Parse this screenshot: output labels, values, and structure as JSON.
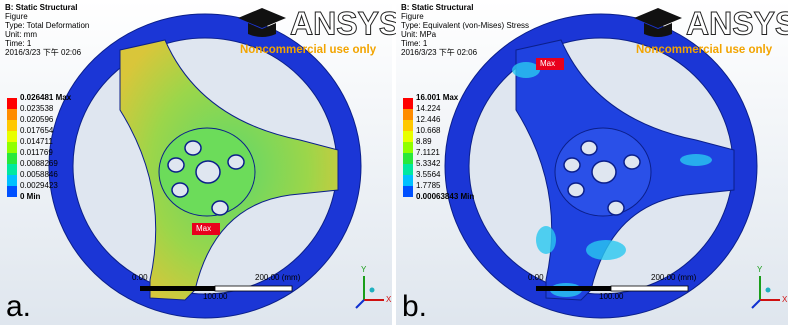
{
  "panels": [
    {
      "header": [
        "B: Static Structural",
        "Figure",
        "Type: Total Deformation",
        "Unit: mm",
        "Time: 1",
        "2016/3/23 下午 02:06"
      ],
      "legend": [
        "0.026481 Max",
        "0.023538",
        "0.020596",
        "0.017654",
        "0.014711",
        "0.011769",
        "0.0088269",
        "0.0058846",
        "0.0029423",
        "0 Min"
      ],
      "max_label": "Max",
      "scale": {
        "start": "0.00",
        "end": "200.00 (mm)",
        "mid": "100.00"
      },
      "label": "a.",
      "logo": {
        "brand": "ANSYS",
        "notice": "Noncommercial use only"
      },
      "axes": {
        "y": "Y",
        "x": "X"
      }
    },
    {
      "header": [
        "B: Static Structural",
        "Figure",
        "Type: Equivalent (von-Mises) Stress",
        "Unit: MPa",
        "Time: 1",
        "2016/3/23 下午 02:06"
      ],
      "legend": [
        "16.001 Max",
        "14.224",
        "12.446",
        "10.668",
        "8.89",
        "7.1121",
        "5.3342",
        "3.5564",
        "1.7785",
        "0.00063843 Min"
      ],
      "max_label": "Max",
      "scale": {
        "start": "0.00",
        "end": "200.00 (mm)",
        "mid": "100.00"
      },
      "label": "b.",
      "logo": {
        "brand": "ANSYS",
        "notice": "Noncommercial use only"
      },
      "axes": {
        "y": "Y",
        "x": "X"
      }
    }
  ]
}
